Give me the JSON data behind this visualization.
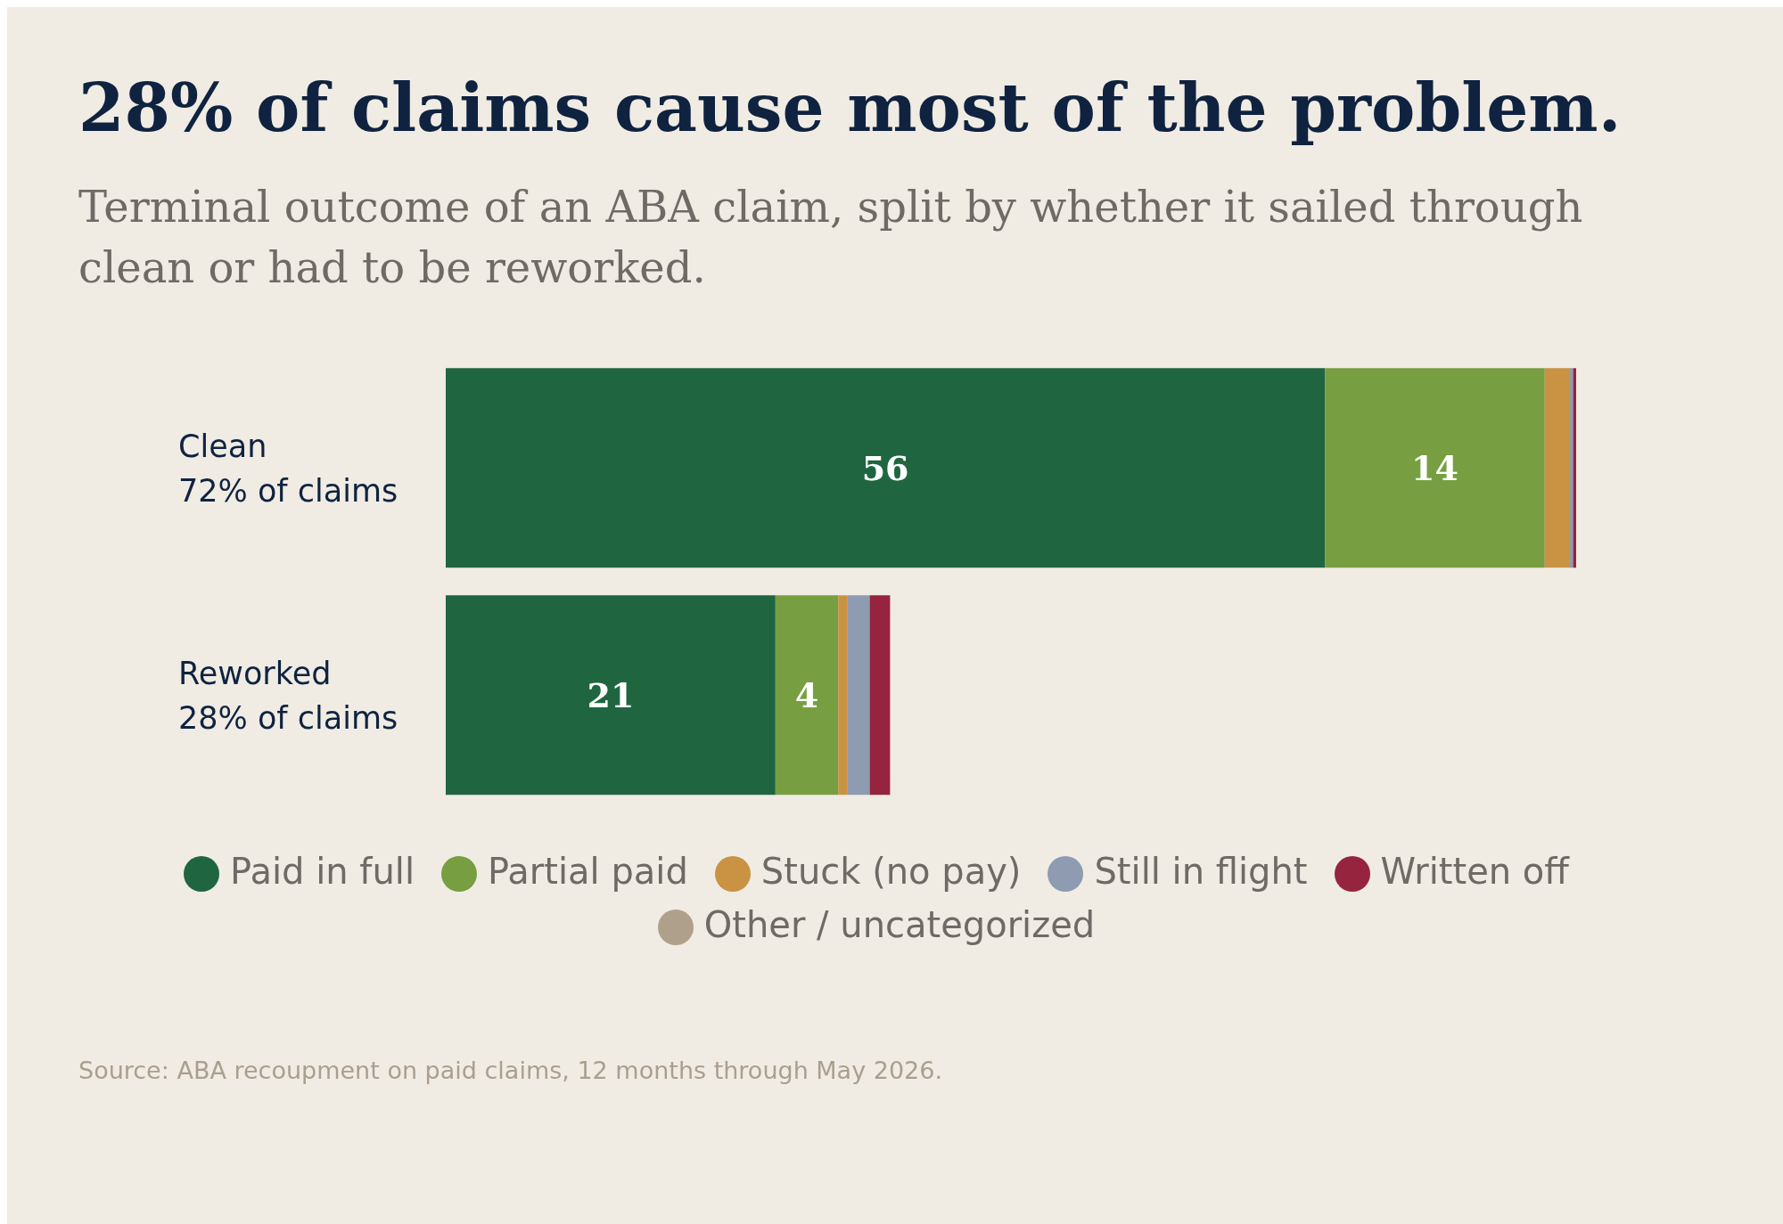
{
  "chart_data": {
    "type": "bar",
    "orientation": "horizontal",
    "stacked": true,
    "title": "28% of claims cause most of the problem.",
    "subtitle": "Terminal outcome of an ABA claim, split by whether it sailed through clean or had to be reworked.",
    "annotations": [
      "Source: ABA recoupment on paid claims, 12 months through May 2026."
    ],
    "categories": [
      "Clean\n72% of claims",
      "Reworked\n28% of claims"
    ],
    "tick_labels": false,
    "legend": "bottom",
    "series": [
      {
        "name": "Paid in full",
        "color": "#1f6640",
        "values": [
          56,
          21
        ],
        "value_labels": [
          "56",
          "21"
        ]
      },
      {
        "name": "Partial paid",
        "color": "#779f41",
        "values": [
          14,
          4
        ],
        "value_labels": [
          "14",
          "4"
        ]
      },
      {
        "name": "Stuck (no pay)",
        "color": "#c99343",
        "values": [
          1.6,
          0.6
        ]
      },
      {
        "name": "Still in flight",
        "color": "#8e9bb0",
        "values": [
          0.2,
          1.4
        ]
      },
      {
        "name": "Written off",
        "color": "#97243e",
        "values": [
          0.2,
          1.3
        ]
      },
      {
        "name": "Other / uncategorized",
        "color": "#aea08a",
        "values": [
          0,
          0
        ]
      }
    ]
  }
}
